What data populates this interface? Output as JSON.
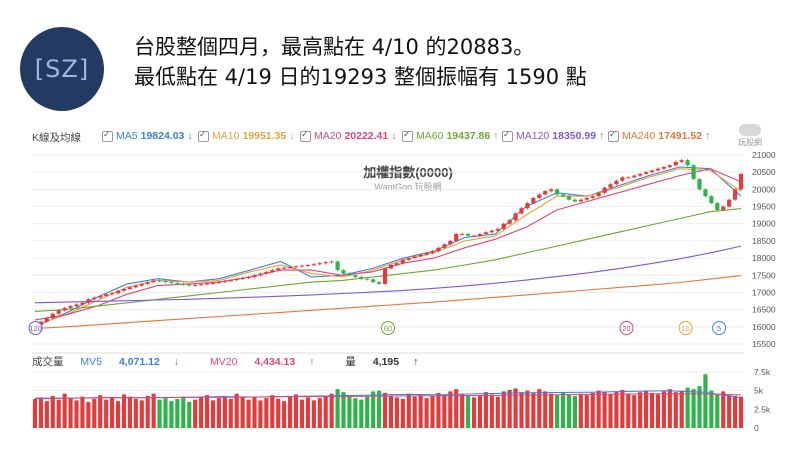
{
  "logo": {
    "text": "[SZ]"
  },
  "headline": {
    "line1": "台股整個四月，最高點在 4/10 的20883。",
    "line2": "最低點在 4/19 日的19293 整個振幅有 1590 點"
  },
  "brand": {
    "text": "玩股網"
  },
  "legend": {
    "kline_label": "K線及均線",
    "items": [
      {
        "name": "MA5",
        "value": "19824.03",
        "arrow": "↓",
        "color": "#3b7fd9"
      },
      {
        "name": "MA10",
        "value": "19951.35",
        "arrow": "↓",
        "color": "#e6a23c"
      },
      {
        "name": "MA20",
        "value": "20222.41",
        "arrow": "↓",
        "color": "#e0457b"
      },
      {
        "name": "MA60",
        "value": "19437.86",
        "arrow": "↑",
        "color": "#6aa82f"
      },
      {
        "name": "MA120",
        "value": "18350.99",
        "arrow": "↑",
        "color": "#7c5ad6"
      },
      {
        "name": "MA240",
        "value": "17491.52",
        "arrow": "↑",
        "color": "#e8743b"
      }
    ]
  },
  "chart_title": "加權指數(0000)",
  "chart_subtitle": "WantGoo 玩股網",
  "volume_legend": {
    "label": "成交量",
    "items": [
      {
        "name": "MV5",
        "value": "4,071.12",
        "arrow": "↓",
        "color": "#3b7fd9"
      },
      {
        "name": "MV20",
        "value": "4,434.13",
        "arrow": "↑",
        "color": "#e0457b"
      },
      {
        "name": "量",
        "value": "4,195",
        "arrow": "↑",
        "color": "#333333"
      }
    ]
  },
  "colors": {
    "up": "#e23b3b",
    "down": "#2fb34a"
  },
  "chart_data": [
    {
      "type": "candlestick",
      "title": "加權指數(0000)",
      "y_ticks": [
        15500,
        16000,
        16500,
        17000,
        17500,
        18000,
        18500,
        19000,
        19500,
        20000,
        20500,
        21000
      ],
      "ylim": [
        15500,
        21000
      ],
      "n_bars": 120,
      "close": [
        16050,
        16150,
        16250,
        16380,
        16480,
        16550,
        16600,
        16650,
        16700,
        16800,
        16850,
        16900,
        16950,
        16980,
        17050,
        17100,
        17150,
        17200,
        17250,
        17300,
        17350,
        17330,
        17300,
        17280,
        17250,
        17230,
        17200,
        17220,
        17240,
        17260,
        17280,
        17300,
        17330,
        17360,
        17390,
        17420,
        17450,
        17500,
        17550,
        17600,
        17650,
        17700,
        17720,
        17740,
        17760,
        17780,
        17800,
        17820,
        17850,
        17880,
        17900,
        17650,
        17550,
        17500,
        17450,
        17400,
        17380,
        17300,
        17250,
        17700,
        17800,
        17850,
        17950,
        18000,
        18050,
        18100,
        18150,
        18200,
        18300,
        18400,
        18500,
        18700,
        18700,
        18650,
        18650,
        18700,
        18750,
        18800,
        18850,
        19000,
        19100,
        19300,
        19450,
        19600,
        19750,
        19850,
        19950,
        20000,
        19850,
        19800,
        19700,
        19650,
        19700,
        19750,
        19800,
        19900,
        20050,
        20150,
        20250,
        20350,
        20350,
        20400,
        20450,
        20500,
        20550,
        20600,
        20650,
        20700,
        20800,
        20850,
        20700,
        20300,
        20000,
        19800,
        19600,
        19400,
        19500,
        19700,
        20000,
        20450
      ],
      "ma_series": [
        {
          "name": "MA5",
          "values": [
            16000,
            16400,
            16850,
            17250,
            17400,
            17300,
            17400,
            17650,
            17900,
            17450,
            17500,
            17700,
            18000,
            18200,
            18600,
            18700,
            19500,
            19900,
            19800,
            20100,
            20400,
            20650,
            20600,
            19800
          ]
        },
        {
          "name": "MA10",
          "values": [
            16050,
            16350,
            16750,
            17150,
            17350,
            17300,
            17350,
            17600,
            17800,
            17550,
            17450,
            17650,
            17950,
            18150,
            18500,
            18650,
            19250,
            19800,
            19800,
            20050,
            20350,
            20600,
            20550,
            19950
          ]
        },
        {
          "name": "MA20",
          "values": [
            16200,
            16350,
            16600,
            16950,
            17200,
            17250,
            17300,
            17450,
            17650,
            17650,
            17500,
            17600,
            17850,
            18000,
            18300,
            18550,
            18900,
            19400,
            19650,
            19900,
            20150,
            20400,
            20600,
            20220
          ]
        },
        {
          "name": "MA60",
          "values": [
            16450,
            16500,
            16600,
            16700,
            16800,
            16900,
            17000,
            17100,
            17200,
            17300,
            17350,
            17450,
            17550,
            17650,
            17800,
            17950,
            18150,
            18350,
            18550,
            18750,
            18950,
            19150,
            19350,
            19440
          ]
        },
        {
          "name": "MA120",
          "values": [
            16700,
            16720,
            16740,
            16760,
            16780,
            16800,
            16830,
            16860,
            16890,
            16930,
            16970,
            17010,
            17060,
            17120,
            17190,
            17270,
            17360,
            17460,
            17570,
            17690,
            17830,
            17980,
            18150,
            18350
          ]
        },
        {
          "name": "MA240",
          "values": [
            15950,
            16000,
            16060,
            16120,
            16180,
            16240,
            16300,
            16360,
            16420,
            16480,
            16540,
            16600,
            16660,
            16720,
            16790,
            16860,
            16930,
            17000,
            17070,
            17140,
            17210,
            17290,
            17390,
            17490
          ]
        }
      ],
      "markers": [
        "120",
        "60",
        "20",
        "10",
        "5"
      ]
    },
    {
      "type": "bar",
      "title": "成交量",
      "y_ticks": [
        "0",
        "2.5k",
        "5k",
        "7.5k"
      ],
      "ylim": [
        0,
        7500
      ],
      "values": [
        3900,
        4100,
        3600,
        4300,
        3800,
        4600,
        4000,
        3700,
        4200,
        3500,
        3900,
        4400,
        3800,
        4100,
        3600,
        4500,
        4200,
        3900,
        3700,
        4300,
        4600,
        3800,
        4000,
        3600,
        3900,
        4200,
        3500,
        3800,
        4100,
        4400,
        3700,
        4000,
        4300,
        3900,
        4600,
        4200,
        3800,
        4100,
        3700,
        4000,
        4400,
        3900,
        3600,
        4200,
        4500,
        3800,
        4100,
        3700,
        4000,
        4300,
        4600,
        5200,
        4800,
        4400,
        4000,
        3800,
        4200,
        4900,
        5000,
        4700,
        4300,
        4100,
        3900,
        4600,
        4200,
        4400,
        4000,
        4300,
        4700,
        4500,
        4900,
        5200,
        4600,
        4300,
        4100,
        4400,
        4800,
        4500,
        4200,
        4900,
        5100,
        5300,
        4800,
        5000,
        4700,
        5200,
        4900,
        4600,
        4400,
        4800,
        4500,
        4300,
        4600,
        4400,
        4700,
        5000,
        4800,
        4500,
        4900,
        5100,
        4600,
        4400,
        4800,
        5000,
        4700,
        4500,
        4900,
        5200,
        4800,
        5000,
        5400,
        5200,
        5600,
        7200,
        5000,
        4600,
        4900,
        4400,
        4300,
        4195
      ],
      "series": [
        {
          "name": "MV5",
          "values": [
            3900,
            4000,
            4100,
            4050,
            4100,
            4200,
            4150,
            4250,
            4300,
            4400,
            4500,
            4450,
            4600,
            4700,
            4750,
            4800,
            4900,
            5000,
            4800,
            4071
          ]
        },
        {
          "name": "MV20",
          "values": [
            4000,
            4000,
            4050,
            4050,
            4100,
            4100,
            4150,
            4200,
            4200,
            4250,
            4300,
            4300,
            4350,
            4400,
            4450,
            4500,
            4550,
            4600,
            4550,
            4434
          ]
        }
      ]
    }
  ]
}
